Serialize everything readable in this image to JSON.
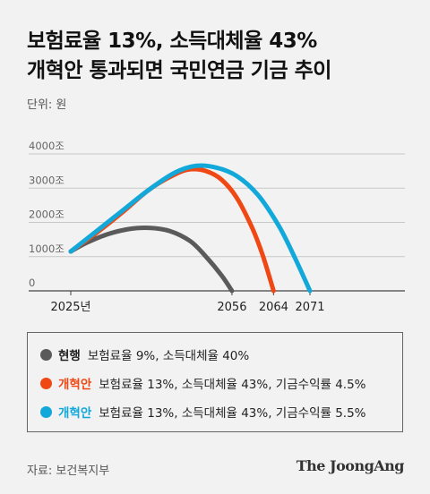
{
  "title": {
    "line1": "보험료율 13%, 소득대체율 43%",
    "line2": "개혁안 통과되면 국민연금 기금 추이"
  },
  "unit": "단위: 원",
  "chart_data": {
    "type": "line",
    "title": "보험료율 13%, 소득대체율 43% 개혁안 통과되면 국민연금 기금 추이",
    "ylabel": "단위: 원",
    "y_ticks": [
      "0",
      "1000조",
      "2000조",
      "3000조",
      "4000조"
    ],
    "y_tick_values": [
      0,
      1000,
      2000,
      3000,
      4000
    ],
    "ylim": [
      0,
      4000
    ],
    "x_ticks": [
      "2025년",
      "2056",
      "2064",
      "2071"
    ],
    "x_tick_values": [
      2025,
      2056,
      2064,
      2071
    ],
    "xlim": [
      2025,
      2071
    ],
    "grid": true,
    "series": [
      {
        "name": "현행",
        "color": "#5a5a5a",
        "x": [
          2025,
          2028,
          2032,
          2036,
          2040,
          2044,
          2048,
          2051,
          2054,
          2056
        ],
        "y": [
          1150,
          1400,
          1650,
          1800,
          1840,
          1750,
          1450,
          1000,
          450,
          0
        ]
      },
      {
        "name": "개혁안",
        "color": "#f04814",
        "x": [
          2025,
          2030,
          2035,
          2040,
          2045,
          2048,
          2051,
          2054,
          2057,
          2060,
          2062,
          2064
        ],
        "y": [
          1150,
          1700,
          2300,
          2950,
          3400,
          3550,
          3500,
          3250,
          2700,
          1800,
          1000,
          0
        ]
      },
      {
        "name": "개혁안",
        "color": "#12a8da",
        "x": [
          2025,
          2030,
          2035,
          2040,
          2045,
          2049,
          2053,
          2057,
          2061,
          2065,
          2068,
          2071
        ],
        "y": [
          1150,
          1750,
          2350,
          2950,
          3450,
          3650,
          3600,
          3350,
          2800,
          1900,
          1000,
          0
        ]
      }
    ]
  },
  "legend": [
    {
      "color": "#5a5a5a",
      "name": "현행",
      "desc": "보험료율 9%, 소득대체율 40%",
      "name_color": "#222222"
    },
    {
      "color": "#f04814",
      "name": "개혁안",
      "desc": "보험료율 13%, 소득대체율 43%, 기금수익률 4.5%",
      "name_color": "#f04814"
    },
    {
      "color": "#12a8da",
      "name": "개혁안",
      "desc": "보험료율 13%, 소득대체율 43%, 기금수익률 5.5%",
      "name_color": "#12a8da"
    }
  ],
  "footer": {
    "source": "자료: 보건복지부",
    "brand": "The JoongAng"
  }
}
